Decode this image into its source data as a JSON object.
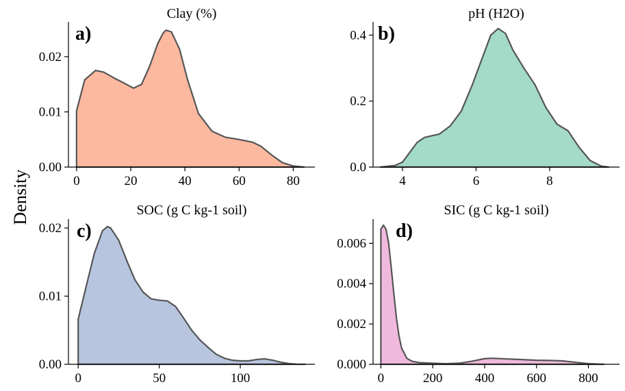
{
  "figure": {
    "ylabel": "Density"
  },
  "chart_data": [
    {
      "type": "area",
      "label": "a)",
      "title": "Clay (%)",
      "color": "#fcb99f",
      "xlim": [
        -3,
        88
      ],
      "ylim": [
        0,
        0.0263
      ],
      "xticks": [
        0,
        20,
        40,
        60,
        80
      ],
      "xtick_labels": [
        "0",
        "20",
        "40",
        "60",
        "80"
      ],
      "yticks": [
        0,
        0.01,
        0.02
      ],
      "ytick_labels": [
        "0.00",
        "0.01",
        "0.02"
      ],
      "x": [
        0,
        3,
        7,
        10,
        14,
        18,
        21,
        24,
        27,
        30,
        32,
        33,
        35,
        38,
        41,
        45,
        50,
        55,
        60,
        65,
        68,
        72,
        76,
        80,
        84
      ],
      "y": [
        0.0102,
        0.0158,
        0.0175,
        0.0172,
        0.0161,
        0.0151,
        0.0143,
        0.015,
        0.0183,
        0.0224,
        0.0243,
        0.0248,
        0.0245,
        0.0214,
        0.0158,
        0.0097,
        0.0065,
        0.0054,
        0.005,
        0.0045,
        0.0038,
        0.0022,
        0.0008,
        0.0002,
        0.0
      ]
    },
    {
      "type": "area",
      "label": "b)",
      "title": "pH (H2O)",
      "color": "#a3dac8",
      "xlim": [
        3.2,
        9.9
      ],
      "ylim": [
        0,
        0.44
      ],
      "xticks": [
        4,
        6,
        8
      ],
      "xtick_labels": [
        "4",
        "6",
        "8"
      ],
      "yticks": [
        0,
        0.2,
        0.4
      ],
      "ytick_labels": [
        "0.0",
        "0.2",
        "0.4"
      ],
      "x": [
        3.4,
        3.8,
        4.0,
        4.2,
        4.4,
        4.6,
        4.8,
        5.0,
        5.3,
        5.6,
        5.9,
        6.2,
        6.4,
        6.6,
        6.8,
        7.0,
        7.3,
        7.6,
        7.9,
        8.2,
        8.5,
        8.8,
        9.1,
        9.4,
        9.6
      ],
      "y": [
        0.0,
        0.005,
        0.015,
        0.045,
        0.075,
        0.09,
        0.095,
        0.1,
        0.125,
        0.17,
        0.25,
        0.34,
        0.4,
        0.42,
        0.405,
        0.355,
        0.3,
        0.25,
        0.18,
        0.13,
        0.11,
        0.06,
        0.02,
        0.003,
        0.0
      ]
    },
    {
      "type": "area",
      "label": "c)",
      "title": "SOC (g C kg-1 soil)",
      "color": "#b7c5df",
      "xlim": [
        -6,
        146
      ],
      "ylim": [
        0,
        0.0213
      ],
      "xticks": [
        0,
        50,
        100
      ],
      "xtick_labels": [
        "0",
        "50",
        "100"
      ],
      "yticks": [
        0,
        0.01,
        0.02
      ],
      "ytick_labels": [
        "0.00",
        "0.01",
        "0.02"
      ],
      "x": [
        0,
        5,
        10,
        15,
        18,
        20,
        25,
        30,
        35,
        40,
        45,
        50,
        55,
        60,
        65,
        70,
        75,
        80,
        85,
        90,
        95,
        100,
        105,
        110,
        115,
        120,
        125,
        130,
        135,
        140
      ],
      "y": [
        0.0066,
        0.0115,
        0.0163,
        0.0196,
        0.0202,
        0.02,
        0.0182,
        0.0152,
        0.0124,
        0.0106,
        0.0096,
        0.0094,
        0.0093,
        0.0085,
        0.0068,
        0.005,
        0.0036,
        0.0025,
        0.0015,
        0.0009,
        0.0006,
        0.0005,
        0.0005,
        0.0007,
        0.0008,
        0.0006,
        0.0003,
        0.0001,
        2e-05,
        0.0
      ]
    },
    {
      "type": "area",
      "label": "d)",
      "title": "SIC (g C kg-1 soil)",
      "color": "#efb8dc",
      "xlim": [
        -30,
        920
      ],
      "ylim": [
        0,
        0.0072
      ],
      "xticks": [
        0,
        200,
        400,
        600,
        800
      ],
      "xtick_labels": [
        "0",
        "200",
        "400",
        "600",
        "800"
      ],
      "yticks": [
        0,
        0.002,
        0.004,
        0.006
      ],
      "ytick_labels": [
        "0.000",
        "0.002",
        "0.004",
        "0.006"
      ],
      "x": [
        0,
        10,
        20,
        30,
        40,
        50,
        60,
        70,
        80,
        100,
        120,
        150,
        200,
        250,
        300,
        350,
        400,
        430,
        480,
        550,
        600,
        650,
        700,
        750,
        800,
        860
      ],
      "y": [
        0.0067,
        0.0069,
        0.0067,
        0.006,
        0.0048,
        0.0035,
        0.0023,
        0.0014,
        0.0008,
        0.0003,
        0.00015,
        8e-05,
        5e-05,
        3e-05,
        5e-05,
        0.00015,
        0.00028,
        0.0003,
        0.00027,
        0.00023,
        0.0002,
        0.00019,
        0.00017,
        0.0001,
        3e-05,
        0.0
      ]
    }
  ]
}
